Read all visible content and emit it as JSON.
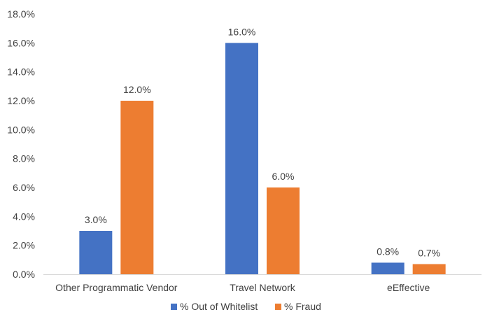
{
  "chart_data": {
    "type": "bar",
    "categories": [
      "Other Programmatic Vendor",
      "Travel Network",
      "eEffective"
    ],
    "series": [
      {
        "name": "% Out of Whitelist",
        "values": [
          3.0,
          16.0,
          0.8
        ],
        "labels": [
          "3.0%",
          "16.0%",
          "0.8%"
        ],
        "color": "#4472C4"
      },
      {
        "name": "% Fraud",
        "values": [
          12.0,
          6.0,
          0.7
        ],
        "labels": [
          "12.0%",
          "6.0%",
          "0.7%"
        ],
        "color": "#ED7D31"
      }
    ],
    "ylim": [
      0,
      18
    ],
    "ytick_values": [
      0,
      2,
      4,
      6,
      8,
      10,
      12,
      14,
      16,
      18
    ],
    "yticks": [
      "0.0%",
      "2.0%",
      "4.0%",
      "6.0%",
      "8.0%",
      "10.0%",
      "12.0%",
      "14.0%",
      "16.0%",
      "18.0%"
    ],
    "grid": false,
    "legend_position": "bottom",
    "axis_color": "#d9d9d9",
    "text_color": "#404040"
  }
}
